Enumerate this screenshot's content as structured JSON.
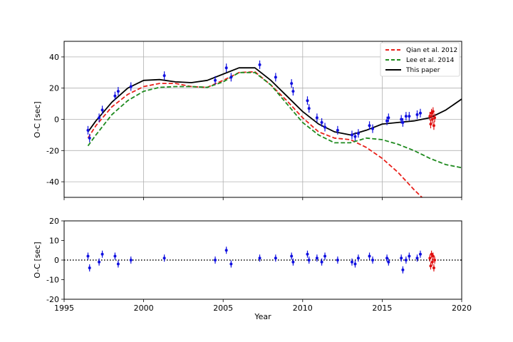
{
  "chart_data": [
    {
      "type": "line",
      "panel": "top",
      "xlim": [
        1995,
        2020
      ],
      "ylim": [
        -50,
        50
      ],
      "ylabel": "O-C [sec]",
      "xticks": [
        1995,
        2000,
        2005,
        2010,
        2015,
        2020
      ],
      "yticks": [
        -40,
        -20,
        0,
        20,
        40
      ],
      "grid": true,
      "legend_position": "top-right",
      "series": [
        {
          "name": "Qian et al. 2012",
          "style": "dashed",
          "color": "#e8201a",
          "x": [
            1996.5,
            1997,
            1998,
            1999,
            2000,
            2001,
            2002,
            2003,
            2004,
            2005,
            2006,
            2007,
            2008,
            2009,
            2010,
            2011,
            2012,
            2013,
            2014,
            2015,
            2016,
            2017,
            2018
          ],
          "y": [
            -12,
            -4,
            8,
            16,
            21,
            23,
            23,
            21,
            20.5,
            25,
            30,
            30.5,
            22,
            12,
            1,
            -8,
            -12,
            -13,
            -18,
            -25,
            -34,
            -45,
            -55
          ]
        },
        {
          "name": "Lee et al. 2014",
          "style": "dashed",
          "color": "#1e8a1e",
          "x": [
            1996.5,
            1997,
            1998,
            1999,
            2000,
            2001,
            2002,
            2003,
            2004,
            2005,
            2006,
            2007,
            2008,
            2009,
            2010,
            2011,
            2012,
            2013,
            2014,
            2015,
            2016,
            2017,
            2018,
            2019,
            2020
          ],
          "y": [
            -17,
            -10,
            3,
            12,
            18,
            20.5,
            21,
            21,
            20.5,
            24,
            30,
            30,
            22,
            10,
            -2,
            -10,
            -15,
            -15,
            -12,
            -13,
            -16,
            -20,
            -25,
            -29,
            -31
          ]
        },
        {
          "name": "This paper",
          "style": "solid",
          "color": "#000000",
          "x": [
            1996.5,
            1997,
            1998,
            1999,
            2000,
            2001,
            2002,
            2003,
            2004,
            2005,
            2006,
            2007,
            2008,
            2009,
            2010,
            2011,
            2012,
            2013,
            2014,
            2015,
            2016,
            2017,
            2018,
            2019,
            2020
          ],
          "y": [
            -8,
            -1,
            11,
            20,
            25,
            25.5,
            24,
            23.5,
            25,
            29,
            33,
            33,
            25,
            15,
            5,
            -3,
            -8,
            -10,
            -7,
            -3,
            -2,
            -1,
            1,
            6,
            13
          ]
        },
        {
          "name": "",
          "marker": "point",
          "color": "#1010e0",
          "x": [
            1996.5,
            1996.6,
            1997.2,
            1997.4,
            1998.2,
            1998.4,
            1999.2,
            2001.3,
            2004.5,
            2005.2,
            2005.5,
            2007.3,
            2008.3,
            2009.3,
            2009.4,
            2010.3,
            2010.4,
            2010.9,
            2011.2,
            2011.4,
            2012.2,
            2013.1,
            2013.3,
            2013.5,
            2014.2,
            2014.4,
            2015.3,
            2015.4,
            2016.2,
            2016.3,
            2016.5,
            2016.7,
            2017.2,
            2017.4
          ],
          "y": [
            -7,
            -12,
            1,
            6,
            15,
            18,
            21,
            28,
            25,
            33,
            27,
            35,
            27,
            23,
            18,
            12,
            7,
            1,
            -2,
            -5,
            -7,
            -10,
            -11,
            -9,
            -4,
            -6,
            -1,
            1,
            0,
            -2,
            2,
            2,
            3,
            4
          ]
        },
        {
          "name": "",
          "marker": "point",
          "color": "#e01010",
          "x": [
            2018.0,
            2018.05,
            2018.1,
            2018.15,
            2018.2,
            2018.25,
            2018.3
          ],
          "y": [
            2,
            -3,
            4,
            0,
            5,
            -4,
            1
          ]
        }
      ]
    },
    {
      "type": "scatter",
      "panel": "bottom",
      "xlim": [
        1995,
        2020
      ],
      "ylim": [
        -20,
        20
      ],
      "xlabel": "Year",
      "ylabel": "O-C [sec]",
      "xticks": [
        1995,
        2000,
        2005,
        2010,
        2015,
        2020
      ],
      "yticks": [
        -20,
        -10,
        0,
        10,
        20
      ],
      "reference_line": {
        "y": 0,
        "style": "dotted"
      },
      "series": [
        {
          "name": "",
          "color": "#1010e0",
          "x": [
            1996.5,
            1996.6,
            1997.2,
            1997.4,
            1998.2,
            1998.4,
            1999.2,
            2001.3,
            2004.5,
            2005.2,
            2005.5,
            2007.3,
            2008.3,
            2009.3,
            2009.4,
            2010.3,
            2010.4,
            2010.9,
            2011.2,
            2011.4,
            2012.2,
            2013.1,
            2013.3,
            2013.5,
            2014.2,
            2014.4,
            2015.3,
            2015.4,
            2016.2,
            2016.3,
            2016.5,
            2016.7,
            2017.2,
            2017.4
          ],
          "y": [
            2,
            -4,
            -1,
            3,
            2,
            -2,
            0,
            1,
            0,
            5,
            -2,
            1,
            1,
            2,
            -1,
            3,
            0,
            1,
            -1,
            2,
            0,
            -1,
            -2,
            1,
            2,
            0,
            1,
            -1,
            1,
            -5,
            0,
            2,
            1,
            3
          ]
        },
        {
          "name": "",
          "color": "#e01010",
          "x": [
            2018.0,
            2018.05,
            2018.1,
            2018.15,
            2018.2,
            2018.25,
            2018.3
          ],
          "y": [
            1,
            -3,
            3,
            -1,
            2,
            -4,
            0
          ]
        }
      ]
    }
  ]
}
